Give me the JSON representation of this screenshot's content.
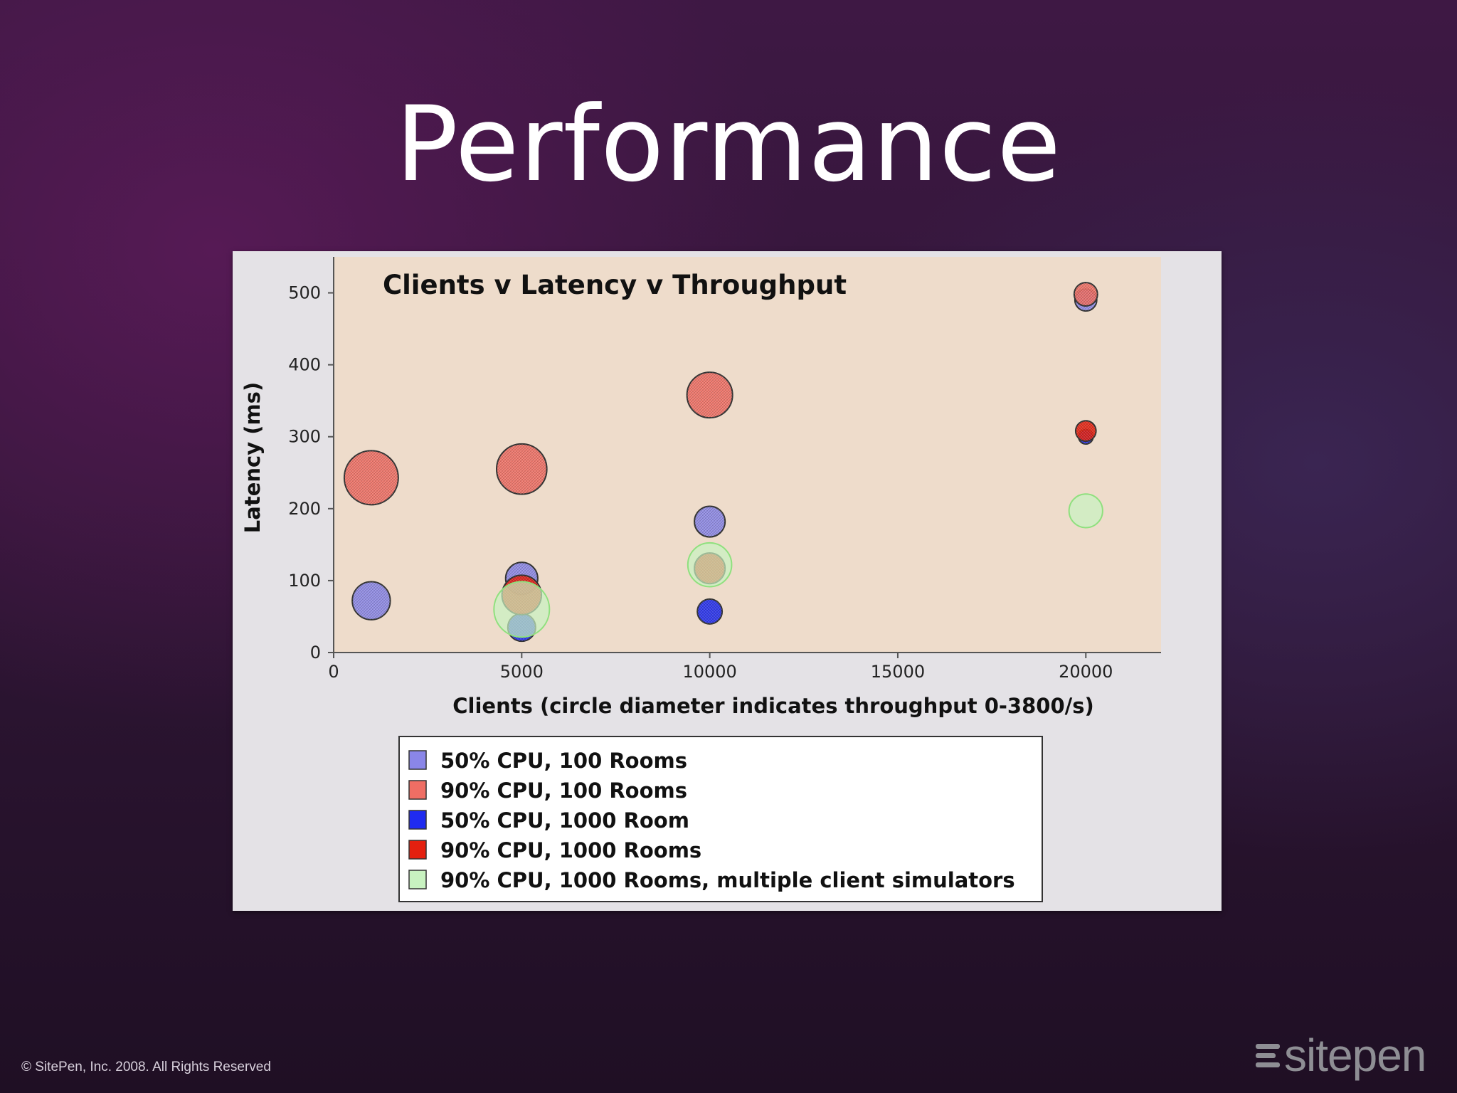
{
  "slide": {
    "title": "Performance",
    "copyright": "© SitePen, Inc. 2008. All Rights Reserved",
    "logo_text": "sitepen"
  },
  "colors": {
    "plot_bg": "#eedccb",
    "panel_bg": "#e4e2e6",
    "s1": "#8a86e8",
    "s2": "#ef6e64",
    "s3": "#1f2bf0",
    "s4": "#e4200f",
    "s5": "#c8f2c0"
  },
  "chart_data": {
    "type": "scatter",
    "title": "Clients v Latency v Throughput",
    "xlabel": "Clients (circle diameter indicates throughput 0-3800/s)",
    "ylabel": "Latency (ms)",
    "xlim": [
      0,
      22000
    ],
    "ylim": [
      0,
      550
    ],
    "xticks": [
      0,
      5000,
      10000,
      15000,
      20000
    ],
    "yticks": [
      0,
      100,
      200,
      300,
      400,
      500
    ],
    "size_range": [
      0,
      3800
    ],
    "legend_position": "bottom",
    "series": [
      {
        "name": "50% CPU, 100 Rooms",
        "color_key": "s1",
        "points": [
          {
            "x": 1000,
            "y": 72,
            "throughput": 1300
          },
          {
            "x": 5000,
            "y": 103,
            "throughput": 1100
          },
          {
            "x": 10000,
            "y": 182,
            "throughput": 1050
          },
          {
            "x": 20000,
            "y": 490,
            "throughput": 750
          }
        ]
      },
      {
        "name": "90% CPU, 100 Rooms",
        "color_key": "s2",
        "points": [
          {
            "x": 1000,
            "y": 243,
            "throughput": 1850
          },
          {
            "x": 5000,
            "y": 255,
            "throughput": 1720
          },
          {
            "x": 10000,
            "y": 358,
            "throughput": 1560
          },
          {
            "x": 20000,
            "y": 498,
            "throughput": 800
          }
        ]
      },
      {
        "name": "50% CPU, 1000 Room",
        "color_key": "s3",
        "points": [
          {
            "x": 5000,
            "y": 35,
            "throughput": 950
          },
          {
            "x": 10000,
            "y": 57,
            "throughput": 850
          },
          {
            "x": 20000,
            "y": 300,
            "throughput": 500
          }
        ]
      },
      {
        "name": "90% CPU, 1000 Rooms",
        "color_key": "s4",
        "points": [
          {
            "x": 5000,
            "y": 80,
            "throughput": 1350
          },
          {
            "x": 10000,
            "y": 117,
            "throughput": 1050
          },
          {
            "x": 20000,
            "y": 308,
            "throughput": 700
          }
        ]
      },
      {
        "name": "90% CPU, 1000 Rooms, multiple client simulators",
        "color_key": "s5",
        "points": [
          {
            "x": 5000,
            "y": 60,
            "throughput": 1900
          },
          {
            "x": 10000,
            "y": 122,
            "throughput": 1500
          },
          {
            "x": 20000,
            "y": 197,
            "throughput": 1150
          }
        ]
      }
    ]
  }
}
